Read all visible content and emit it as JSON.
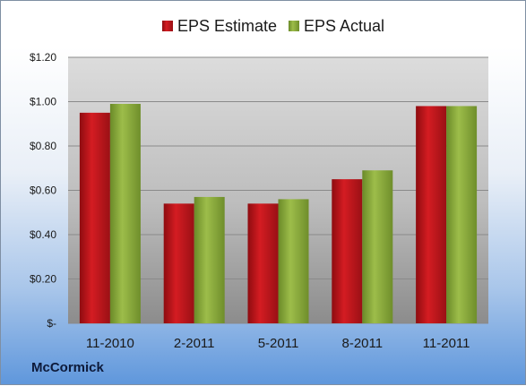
{
  "chart_data": {
    "type": "bar",
    "categories": [
      "11-2010",
      "2-2011",
      "5-2011",
      "8-2011",
      "11-2011"
    ],
    "series": [
      {
        "name": "EPS Estimate",
        "values": [
          0.95,
          0.54,
          0.54,
          0.65,
          0.98
        ],
        "color": "#c3161c"
      },
      {
        "name": "EPS Actual",
        "values": [
          0.99,
          0.57,
          0.56,
          0.69,
          0.98
        ],
        "color": "#8fae3c"
      }
    ],
    "yticks": [
      {
        "value": 0,
        "label": "$-"
      },
      {
        "value": 0.2,
        "label": "$0.20"
      },
      {
        "value": 0.4,
        "label": "$0.40"
      },
      {
        "value": 0.6,
        "label": "$0.60"
      },
      {
        "value": 0.8,
        "label": "$0.80"
      },
      {
        "value": 1.0,
        "label": "$1.00"
      },
      {
        "value": 1.2,
        "label": "$1.20"
      }
    ],
    "ylim": [
      0,
      1.2
    ],
    "grid": true,
    "legend": "top-center"
  },
  "footer": {
    "company": "McCormick"
  }
}
